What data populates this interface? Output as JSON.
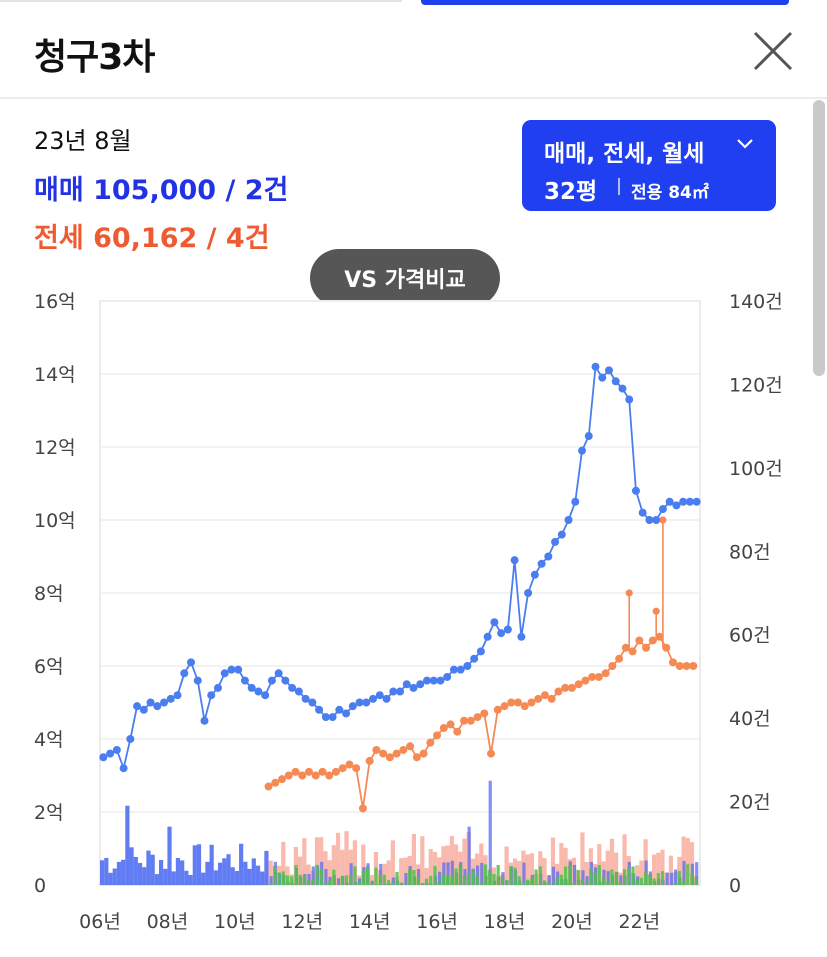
{
  "header": {
    "title": "청구3차"
  },
  "summary": {
    "date": "23년 8월",
    "sale": "매매 105,000 / 2건",
    "jeonse": "전세 60,162 / 4건"
  },
  "filter": {
    "types": "매매, 전세, 월세",
    "area": "32평",
    "exclusive": "전용 84㎡"
  },
  "compare_button": "VS 가격비교",
  "colors": {
    "sale": "#4a7ef0",
    "jeonse": "#f58a55",
    "monthly": "#4fc24a",
    "accent": "#1f3ff0"
  },
  "chart_data": {
    "type": "line",
    "x_range": [
      2006,
      2023.8
    ],
    "x_ticks": [
      {
        "value": 2006,
        "label": "06년"
      },
      {
        "value": 2008,
        "label": "08년"
      },
      {
        "value": 2010,
        "label": "10년"
      },
      {
        "value": 2012,
        "label": "12년"
      },
      {
        "value": 2014,
        "label": "14년"
      },
      {
        "value": 2016,
        "label": "16년"
      },
      {
        "value": 2018,
        "label": "18년"
      },
      {
        "value": 2020,
        "label": "20년"
      },
      {
        "value": 2022,
        "label": "22년"
      }
    ],
    "y_left_ticks": [
      {
        "value": 0,
        "label": "0"
      },
      {
        "value": 2,
        "label": "2억"
      },
      {
        "value": 4,
        "label": "4억"
      },
      {
        "value": 6,
        "label": "6억"
      },
      {
        "value": 8,
        "label": "8억"
      },
      {
        "value": 10,
        "label": "10억"
      },
      {
        "value": 12,
        "label": "12억"
      },
      {
        "value": 14,
        "label": "14억"
      },
      {
        "value": 16,
        "label": "16억"
      }
    ],
    "y_right_ticks": [
      {
        "value": 0,
        "label": "0"
      },
      {
        "value": 20,
        "label": "20건"
      },
      {
        "value": 40,
        "label": "40건"
      },
      {
        "value": 60,
        "label": "60건"
      },
      {
        "value": 80,
        "label": "80건"
      },
      {
        "value": 100,
        "label": "100건"
      },
      {
        "value": 120,
        "label": "120건"
      },
      {
        "value": 140,
        "label": "140건"
      }
    ],
    "ylim_left": [
      0,
      16
    ],
    "ylim_right": [
      0,
      140
    ],
    "grid": true,
    "series": [
      {
        "key": "sale",
        "x": [
          2006.1,
          2006.3,
          2006.5,
          2006.7,
          2006.9,
          2007.1,
          2007.3,
          2007.5,
          2007.7,
          2007.9,
          2008.1,
          2008.3,
          2008.5,
          2008.7,
          2008.9,
          2009.1,
          2009.3,
          2009.5,
          2009.7,
          2009.9,
          2010.1,
          2010.3,
          2010.5,
          2010.7,
          2010.9,
          2011.1,
          2011.3,
          2011.5,
          2011.7,
          2011.9,
          2012.1,
          2012.3,
          2012.5,
          2012.7,
          2012.9,
          2013.1,
          2013.3,
          2013.5,
          2013.7,
          2013.9,
          2014.1,
          2014.3,
          2014.5,
          2014.7,
          2014.9,
          2015.1,
          2015.3,
          2015.5,
          2015.7,
          2015.9,
          2016.1,
          2016.3,
          2016.5,
          2016.7,
          2016.9,
          2017.1,
          2017.3,
          2017.5,
          2017.7,
          2017.9,
          2018.1,
          2018.3,
          2018.5,
          2018.7,
          2018.9,
          2019.1,
          2019.3,
          2019.5,
          2019.7,
          2019.9,
          2020.1,
          2020.3,
          2020.5,
          2020.7,
          2020.9,
          2021.1,
          2021.3,
          2021.5,
          2021.7,
          2021.9,
          2022.1,
          2022.3,
          2022.5,
          2022.7,
          2022.9,
          2023.1,
          2023.3,
          2023.5,
          2023.7
        ],
        "values": [
          3.5,
          3.6,
          3.7,
          3.2,
          4.0,
          4.9,
          4.8,
          5.0,
          4.9,
          5.0,
          5.1,
          5.2,
          5.8,
          6.1,
          5.6,
          4.5,
          5.2,
          5.4,
          5.8,
          5.9,
          5.9,
          5.6,
          5.4,
          5.3,
          5.2,
          5.6,
          5.8,
          5.6,
          5.4,
          5.3,
          5.1,
          5.0,
          4.8,
          4.6,
          4.6,
          4.8,
          4.7,
          4.9,
          5.0,
          5.0,
          5.1,
          5.2,
          5.1,
          5.3,
          5.3,
          5.5,
          5.4,
          5.5,
          5.6,
          5.6,
          5.6,
          5.7,
          5.9,
          5.9,
          6.0,
          6.2,
          6.4,
          6.8,
          7.2,
          6.9,
          7.0,
          8.9,
          6.8,
          8.0,
          8.5,
          8.8,
          9.0,
          9.4,
          9.6,
          10.0,
          10.5,
          11.9,
          12.3,
          14.2,
          13.9,
          14.1,
          13.8,
          13.6,
          13.3,
          10.8,
          10.2,
          10.0,
          10.0,
          10.3,
          10.5,
          10.4,
          10.5,
          10.5,
          10.5
        ]
      },
      {
        "key": "jeonse",
        "x": [
          2011.0,
          2011.2,
          2011.4,
          2011.6,
          2011.8,
          2012.0,
          2012.2,
          2012.4,
          2012.6,
          2012.8,
          2013.0,
          2013.2,
          2013.4,
          2013.6,
          2013.8,
          2014.0,
          2014.2,
          2014.4,
          2014.6,
          2014.8,
          2015.0,
          2015.2,
          2015.4,
          2015.6,
          2015.8,
          2016.0,
          2016.2,
          2016.4,
          2016.6,
          2016.8,
          2017.0,
          2017.2,
          2017.4,
          2017.6,
          2017.8,
          2018.0,
          2018.2,
          2018.4,
          2018.6,
          2018.8,
          2019.0,
          2019.2,
          2019.4,
          2019.6,
          2019.8,
          2020.0,
          2020.2,
          2020.4,
          2020.6,
          2020.8,
          2021.0,
          2021.2,
          2021.4,
          2021.6,
          2021.8,
          2022.0,
          2022.2,
          2022.4,
          2022.6,
          2022.8,
          2023.0,
          2023.2,
          2023.4,
          2023.6
        ],
        "values": [
          2.7,
          2.8,
          2.9,
          3.0,
          3.1,
          3.0,
          3.1,
          3.0,
          3.1,
          3.0,
          3.1,
          3.2,
          3.3,
          3.2,
          2.1,
          3.4,
          3.7,
          3.6,
          3.5,
          3.6,
          3.7,
          3.8,
          3.5,
          3.6,
          3.9,
          4.1,
          4.3,
          4.4,
          4.2,
          4.5,
          4.5,
          4.6,
          4.7,
          3.6,
          4.8,
          4.9,
          5.0,
          5.0,
          4.9,
          5.0,
          5.1,
          5.2,
          5.1,
          5.3,
          5.4,
          5.4,
          5.5,
          5.6,
          5.7,
          5.7,
          5.8,
          6.0,
          6.2,
          6.5,
          6.4,
          6.7,
          6.5,
          6.7,
          6.8,
          6.5,
          6.1,
          6.0,
          6.0,
          6.0
        ]
      }
    ],
    "jeonse_spikes": [
      {
        "x": 2021.7,
        "value": 8.0
      },
      {
        "x": 2022.5,
        "value": 7.5
      },
      {
        "x": 2022.7,
        "value": 10.0
      }
    ]
  }
}
